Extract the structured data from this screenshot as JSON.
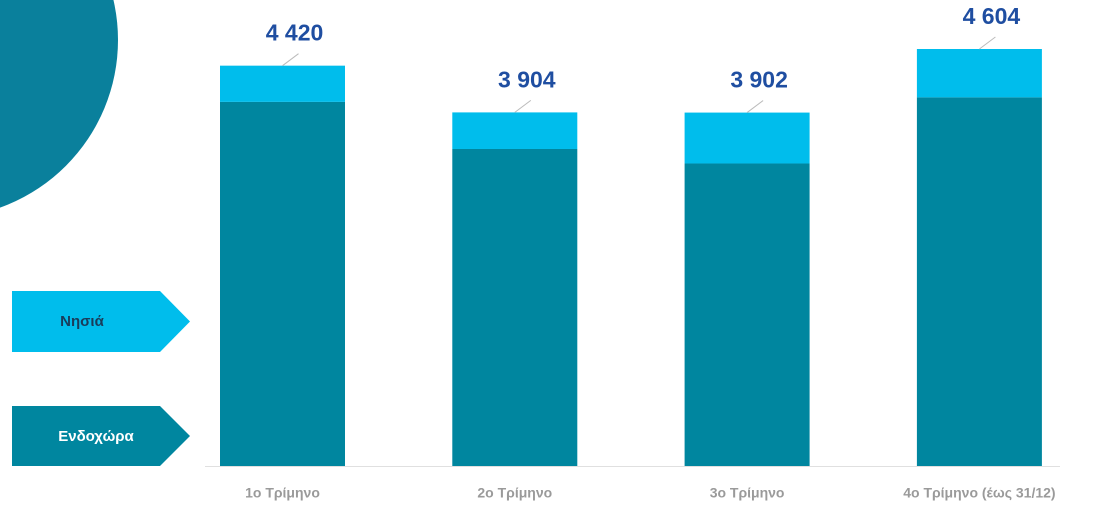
{
  "chart_data": {
    "type": "stacked-bar",
    "categories": [
      "1ο Τρίμηνο",
      "2ο Τρίμηνο",
      "3ο Τρίμηνο",
      "4ο Τρίμηνο (έως 31/12)"
    ],
    "series": [
      {
        "name": "Ενδοχώρα",
        "color": "#00869f",
        "values": [
          4020,
          3500,
          3340,
          4070
        ]
      },
      {
        "name": "Νησιά",
        "color": "#00bdec",
        "values": [
          400,
          404,
          562,
          534
        ]
      }
    ],
    "totals": [
      4420,
      3904,
      3902,
      4604
    ],
    "total_labels": [
      "4 420",
      "3 904",
      "3 902",
      "4 604"
    ]
  }
}
